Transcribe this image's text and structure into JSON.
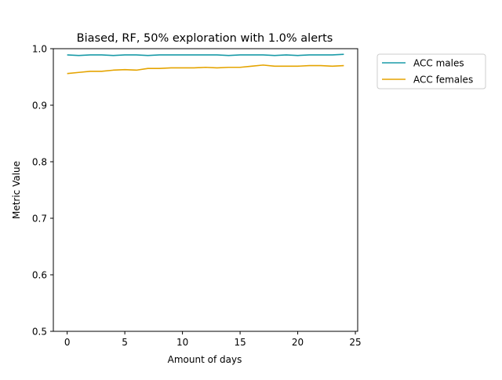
{
  "chart_data": {
    "type": "line",
    "title": "Biased, RF, 50% exploration with 1.0% alerts",
    "xlabel": "Amount of days",
    "ylabel": "Metric Value",
    "xlim": [
      -1.2,
      25.2
    ],
    "ylim": [
      0.5,
      1.0
    ],
    "xticks": [
      0,
      5,
      10,
      15,
      20,
      25
    ],
    "xtick_labels": [
      "0",
      "5",
      "10",
      "15",
      "20",
      "25"
    ],
    "yticks": [
      0.5,
      0.6,
      0.7,
      0.8,
      0.9,
      1.0
    ],
    "ytick_labels": [
      "0.5",
      "0.6",
      "0.7",
      "0.8",
      "0.9",
      "1.0"
    ],
    "grid": false,
    "legend_position": "outside-top-right",
    "x": [
      0,
      1,
      2,
      3,
      4,
      5,
      6,
      7,
      8,
      9,
      10,
      11,
      12,
      13,
      14,
      15,
      16,
      17,
      18,
      19,
      20,
      21,
      22,
      23,
      24
    ],
    "series": [
      {
        "name": "ACC males",
        "color": "#1a9ba8",
        "values": [
          0.989,
          0.988,
          0.989,
          0.989,
          0.988,
          0.989,
          0.989,
          0.988,
          0.989,
          0.989,
          0.989,
          0.989,
          0.989,
          0.989,
          0.988,
          0.989,
          0.989,
          0.989,
          0.988,
          0.989,
          0.988,
          0.989,
          0.989,
          0.989,
          0.99
        ]
      },
      {
        "name": "ACC females",
        "color": "#e5a400",
        "values": [
          0.956,
          0.958,
          0.96,
          0.96,
          0.962,
          0.963,
          0.962,
          0.965,
          0.965,
          0.966,
          0.966,
          0.966,
          0.967,
          0.966,
          0.967,
          0.967,
          0.969,
          0.971,
          0.969,
          0.969,
          0.969,
          0.97,
          0.97,
          0.969,
          0.97
        ]
      }
    ]
  }
}
